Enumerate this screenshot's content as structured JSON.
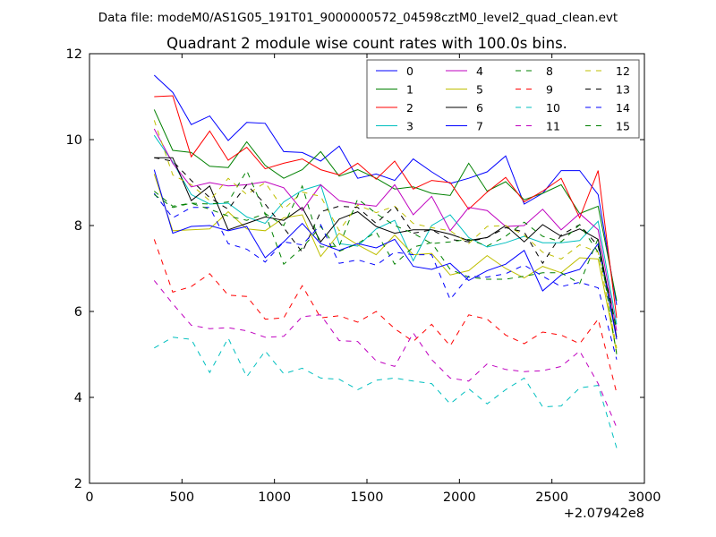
{
  "suptitle": "Data file: modeM0/AS1G05_191T01_9000000572_04598cztM0_level2_quad_clean.evt",
  "chart_data": {
    "type": "line",
    "title": "Quadrant 2 module wise count rates with 100.0s bins.",
    "xlabel": "",
    "ylabel": "",
    "x_offset_label": "+2.07942e8",
    "xlim": [
      0,
      3000
    ],
    "ylim": [
      2,
      12
    ],
    "xticks": [
      "0",
      "500",
      "1000",
      "1500",
      "2000",
      "2500",
      "3000"
    ],
    "yticks": [
      "2",
      "4",
      "6",
      "8",
      "10",
      "12"
    ],
    "grid": false,
    "legend_position": "top-right",
    "x": [
      350,
      450,
      550,
      650,
      750,
      850,
      950,
      1050,
      1150,
      1250,
      1350,
      1450,
      1550,
      1650,
      1750,
      1850,
      1950,
      2050,
      2150,
      2250,
      2350,
      2450,
      2550,
      2650,
      2750,
      2850
    ],
    "series": [
      {
        "name": "0",
        "color": "#0000ff",
        "dash": "solid",
        "values": [
          11.5,
          11.1,
          10.35,
          10.55,
          9.98,
          10.4,
          10.38,
          9.72,
          9.7,
          9.5,
          9.85,
          9.1,
          9.2,
          9.05,
          9.55,
          9.25,
          8.98,
          9.1,
          9.25,
          9.62,
          8.5,
          8.75,
          9.28,
          9.28,
          8.72,
          6.15
        ]
      },
      {
        "name": "1",
        "color": "#008000",
        "dash": "solid",
        "values": [
          10.7,
          9.75,
          9.7,
          9.38,
          9.35,
          9.95,
          9.4,
          9.1,
          9.3,
          9.72,
          9.15,
          9.3,
          9.1,
          8.85,
          8.9,
          8.75,
          8.7,
          9.45,
          8.8,
          9.02,
          8.6,
          8.75,
          8.95,
          8.28,
          8.45,
          6.25
        ]
      },
      {
        "name": "2",
        "color": "#ff0000",
        "dash": "solid",
        "values": [
          11.0,
          11.02,
          9.6,
          10.2,
          9.52,
          9.82,
          9.32,
          9.45,
          9.55,
          9.3,
          9.18,
          9.45,
          9.08,
          9.5,
          8.85,
          9.05,
          9.0,
          8.38,
          8.78,
          9.12,
          8.55,
          8.8,
          9.1,
          8.18,
          9.28,
          5.85
        ]
      },
      {
        "name": "3",
        "color": "#00bfbf",
        "dash": "solid",
        "values": [
          10.1,
          9.48,
          8.72,
          8.5,
          8.52,
          8.2,
          8.05,
          8.55,
          8.82,
          8.95,
          7.58,
          7.52,
          7.92,
          8.12,
          7.18,
          8.0,
          8.25,
          7.72,
          7.5,
          7.6,
          7.75,
          7.6,
          7.6,
          7.65,
          8.1,
          5.7
        ]
      },
      {
        "name": "4",
        "color": "#bf00bf",
        "dash": "solid",
        "values": [
          10.25,
          9.45,
          8.9,
          9.0,
          8.92,
          8.95,
          9.02,
          8.88,
          8.35,
          8.95,
          8.58,
          8.5,
          8.45,
          8.95,
          8.25,
          8.68,
          7.88,
          8.42,
          8.35,
          7.98,
          8.0,
          8.38,
          7.9,
          8.28,
          7.9,
          5.55
        ]
      },
      {
        "name": "5",
        "color": "#bfbf00",
        "dash": "solid",
        "values": [
          9.2,
          7.88,
          7.9,
          7.92,
          8.32,
          7.92,
          7.88,
          8.18,
          8.25,
          7.28,
          7.82,
          7.55,
          7.32,
          7.78,
          7.32,
          7.35,
          6.85,
          6.95,
          7.3,
          7.0,
          6.78,
          7.05,
          6.9,
          7.25,
          7.22,
          5.05
        ]
      },
      {
        "name": "6",
        "color": "#000000",
        "dash": "solid",
        "values": [
          9.58,
          9.58,
          8.58,
          8.92,
          7.9,
          8.05,
          8.2,
          8.12,
          8.42,
          7.62,
          8.15,
          8.32,
          7.98,
          7.82,
          7.9,
          7.9,
          7.8,
          7.65,
          7.72,
          8.0,
          7.62,
          8.02,
          7.75,
          7.92,
          7.68,
          5.4
        ]
      },
      {
        "name": "7",
        "color": "#0000ff",
        "dash": "solid",
        "values": [
          9.3,
          7.82,
          7.98,
          8.0,
          7.88,
          7.98,
          7.25,
          7.62,
          8.05,
          7.58,
          7.42,
          7.58,
          7.48,
          7.68,
          7.05,
          6.98,
          7.12,
          6.72,
          6.95,
          7.1,
          7.42,
          6.48,
          6.85,
          6.98,
          7.58,
          5.35
        ]
      },
      {
        "name": "8",
        "color": "#008000",
        "dash": "dashed",
        "values": [
          8.8,
          8.45,
          8.52,
          8.5,
          8.55,
          9.28,
          8.28,
          7.1,
          7.48,
          7.98,
          7.4,
          7.58,
          7.85,
          7.1,
          7.5,
          7.6,
          6.98,
          6.8,
          6.75,
          6.75,
          6.82,
          6.9,
          6.9,
          6.65,
          7.7,
          5.0
        ]
      },
      {
        "name": "9",
        "color": "#ff0000",
        "dash": "dashed",
        "values": [
          7.68,
          6.45,
          6.58,
          6.88,
          6.38,
          6.35,
          5.82,
          5.85,
          6.6,
          5.85,
          5.9,
          5.75,
          6.0,
          5.6,
          5.3,
          5.7,
          5.2,
          5.92,
          5.82,
          5.45,
          5.25,
          5.52,
          5.45,
          5.25,
          5.82,
          4.1
        ]
      },
      {
        "name": "10",
        "color": "#00bfbf",
        "dash": "dashed",
        "values": [
          5.15,
          5.4,
          5.35,
          4.58,
          5.38,
          4.48,
          5.08,
          4.55,
          4.68,
          4.45,
          4.42,
          4.18,
          4.4,
          4.45,
          4.38,
          4.32,
          3.85,
          4.2,
          3.85,
          4.18,
          4.45,
          3.78,
          3.8,
          4.22,
          4.28,
          2.82
        ]
      },
      {
        "name": "11",
        "color": "#bf00bf",
        "dash": "dashed",
        "values": [
          6.72,
          6.18,
          5.68,
          5.6,
          5.62,
          5.55,
          5.4,
          5.42,
          5.88,
          5.92,
          5.32,
          5.3,
          4.85,
          4.72,
          5.5,
          4.88,
          4.45,
          4.38,
          4.78,
          4.65,
          4.6,
          4.62,
          4.72,
          5.08,
          4.32,
          3.3
        ]
      },
      {
        "name": "12",
        "color": "#bfbf00",
        "dash": "dashed",
        "values": [
          10.45,
          9.18,
          8.95,
          8.58,
          9.1,
          8.72,
          9.0,
          8.38,
          8.78,
          8.68,
          7.88,
          8.48,
          8.3,
          8.45,
          8.05,
          7.95,
          7.88,
          7.58,
          7.98,
          8.0,
          7.78,
          7.38,
          7.22,
          7.55,
          7.38,
          5.15
        ]
      },
      {
        "name": "13",
        "color": "#000000",
        "dash": "dashed",
        "values": [
          9.58,
          9.5,
          9.05,
          8.65,
          8.38,
          8.95,
          8.5,
          7.95,
          7.38,
          8.32,
          8.45,
          8.42,
          8.05,
          8.45,
          7.82,
          7.9,
          7.68,
          7.62,
          7.72,
          7.95,
          7.85,
          7.12,
          7.78,
          8.02,
          7.52,
          5.6
        ]
      },
      {
        "name": "14",
        "color": "#0000ff",
        "dash": "dashed",
        "values": [
          8.75,
          8.18,
          8.42,
          8.42,
          7.58,
          7.45,
          7.15,
          7.62,
          7.55,
          8.02,
          7.12,
          7.2,
          7.08,
          7.38,
          7.32,
          7.32,
          6.28,
          6.82,
          6.8,
          6.88,
          7.08,
          6.82,
          6.58,
          6.68,
          6.55,
          4.88
        ]
      },
      {
        "name": "15",
        "color": "#008000",
        "dash": "dashed",
        "values": [
          8.72,
          8.42,
          8.52,
          8.38,
          8.22,
          8.12,
          8.28,
          8.0,
          8.92,
          7.5,
          7.52,
          8.62,
          8.28,
          8.0,
          7.82,
          7.58,
          7.62,
          7.68,
          7.52,
          7.75,
          8.08,
          7.75,
          7.62,
          8.02,
          7.38,
          5.58
        ]
      }
    ]
  }
}
